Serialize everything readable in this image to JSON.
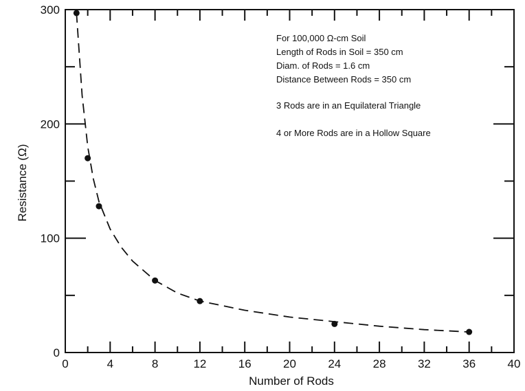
{
  "chart_data": {
    "type": "scatter",
    "xlabel": "Number of Rods",
    "ylabel": "Resistance (Ω)",
    "xlim": [
      0,
      40
    ],
    "ylim": [
      0,
      300
    ],
    "x_ticks": [
      "0",
      "4",
      "8",
      "12",
      "16",
      "20",
      "24",
      "28",
      "32",
      "36",
      "40"
    ],
    "y_ticks": [
      "0",
      "100",
      "200",
      "300"
    ],
    "grid": false,
    "series": [
      {
        "marker": "dot",
        "x": [
          1,
          2,
          3,
          8,
          12,
          24,
          36
        ],
        "y": [
          297,
          170,
          128,
          63,
          45,
          25,
          18
        ]
      },
      {
        "style": "dashed",
        "x": [
          1,
          1.5,
          2,
          2.5,
          3,
          4,
          5,
          6,
          8,
          10,
          12,
          16,
          20,
          24,
          28,
          32,
          36
        ],
        "y": [
          297,
          225,
          180,
          152,
          132,
          108,
          92,
          80,
          63,
          52,
          45,
          37,
          31,
          27,
          23,
          20,
          18
        ]
      }
    ],
    "annotations": [
      "For 100,000 Ω-cm Soil",
      "Length of Rods in Soil = 350 cm",
      "Diam. of Rods = 1.6 cm",
      "Distance Between Rods = 350 cm",
      "3 Rods are in an Equilateral Triangle",
      "4 or More Rods are in a Hollow Square"
    ]
  }
}
